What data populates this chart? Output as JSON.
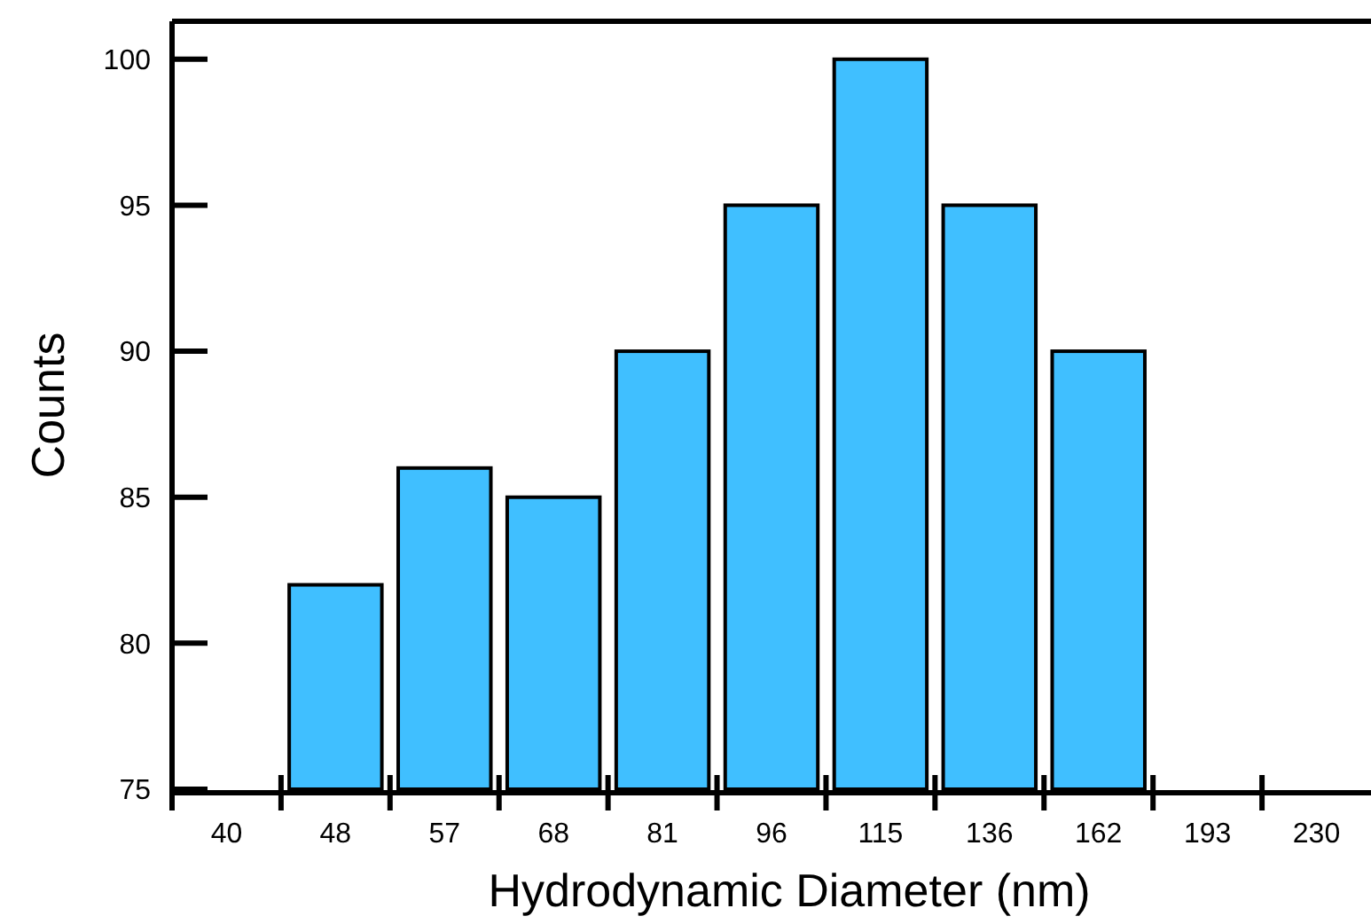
{
  "chart_data": {
    "type": "bar",
    "xlabel": "Hydrodynamic Diameter (nm)",
    "ylabel": "Counts",
    "categories": [
      "40",
      "48",
      "57",
      "68",
      "81",
      "96",
      "115",
      "136",
      "162",
      "193",
      "230"
    ],
    "values": [
      null,
      82,
      86,
      85,
      90,
      95,
      100,
      95,
      90,
      null,
      null
    ],
    "color": "#40bfff",
    "ylim": [
      75,
      101.3
    ],
    "yticks": [
      75,
      80,
      85,
      90,
      95,
      100
    ],
    "grid": false
  }
}
